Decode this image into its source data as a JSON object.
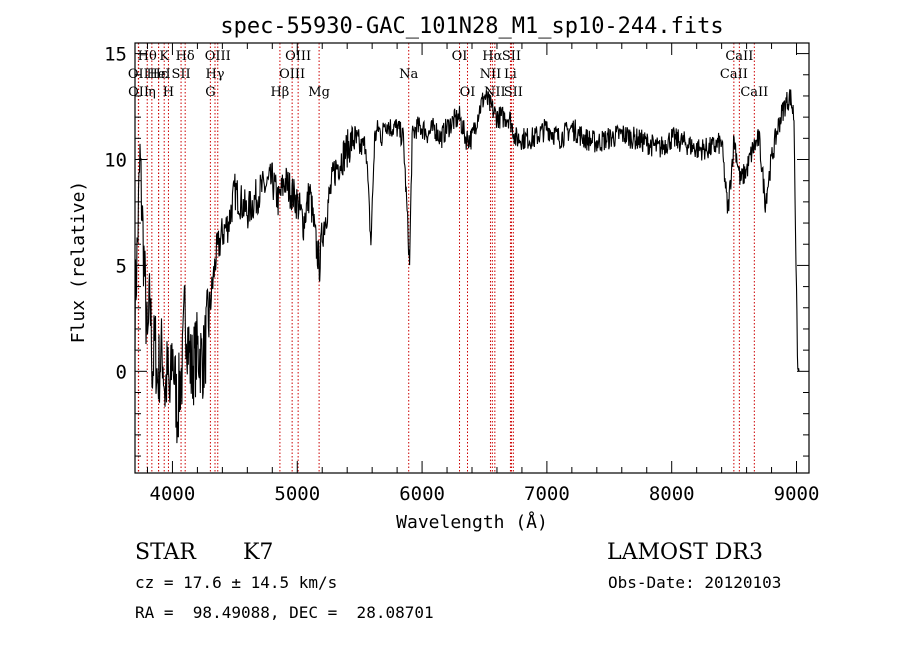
{
  "chart_data": {
    "type": "line",
    "title": "spec-55930-GAC_101N28_M1_sp10-244.fits",
    "xlabel": "Wavelength (Å)",
    "ylabel": "Flux (relative)",
    "xlim": [
      3700,
      9100
    ],
    "ylim": [
      -4.8,
      15.5
    ],
    "xticks": [
      4000,
      5000,
      6000,
      7000,
      8000,
      9000
    ],
    "yticks": [
      0,
      5,
      10,
      15
    ],
    "series": [
      {
        "name": "flux",
        "x": [
          3700,
          3720,
          3740,
          3760,
          3780,
          3800,
          3820,
          3840,
          3860,
          3880,
          3900,
          3920,
          3940,
          3960,
          3980,
          4000,
          4020,
          4040,
          4060,
          4080,
          4100,
          4150,
          4200,
          4250,
          4300,
          4350,
          4400,
          4450,
          4500,
          4600,
          4700,
          4800,
          4850,
          4900,
          4950,
          5000,
          5050,
          5100,
          5150,
          5180,
          5200,
          5250,
          5300,
          5350,
          5400,
          5450,
          5500,
          5550,
          5590,
          5620,
          5650,
          5680,
          5700,
          5750,
          5800,
          5850,
          5880,
          5900,
          5920,
          5950,
          6000,
          6050,
          6100,
          6150,
          6200,
          6250,
          6300,
          6350,
          6400,
          6450,
          6500,
          6550,
          6600,
          6650,
          6700,
          6750,
          6800,
          6900,
          7000,
          7100,
          7200,
          7300,
          7400,
          7500,
          7600,
          7700,
          7800,
          7900,
          8000,
          8100,
          8200,
          8300,
          8400,
          8450,
          8500,
          8550,
          8600,
          8650,
          8700,
          8750,
          8800,
          8850,
          8900,
          8950,
          8980,
          9000,
          9010,
          9020
        ],
        "y": [
          3.0,
          6.0,
          10.0,
          7.0,
          4.0,
          1.0,
          3.5,
          0.0,
          1.5,
          -0.5,
          0.5,
          1.0,
          -1.0,
          0.0,
          -1.5,
          1.0,
          -0.5,
          -2.0,
          -0.5,
          0.0,
          3.0,
          0.0,
          1.0,
          0.5,
          3.0,
          5.5,
          6.5,
          7.0,
          8.5,
          7.5,
          8.5,
          9.0,
          8.0,
          9.0,
          8.5,
          8.0,
          7.0,
          8.5,
          6.0,
          5.0,
          6.5,
          8.0,
          9.5,
          10.0,
          10.5,
          11.0,
          10.5,
          10.8,
          6.0,
          11.0,
          11.5,
          11.0,
          11.8,
          11.5,
          11.5,
          11.0,
          7.5,
          5.0,
          11.0,
          11.5,
          11.5,
          11.2,
          11.5,
          11.0,
          11.5,
          11.8,
          12.0,
          11.0,
          11.0,
          12.2,
          13.0,
          12.5,
          12.0,
          12.0,
          12.0,
          11.0,
          11.0,
          11.0,
          11.5,
          11.0,
          11.5,
          11.0,
          10.8,
          11.0,
          11.2,
          11.0,
          10.8,
          10.5,
          11.0,
          10.8,
          10.5,
          10.5,
          10.8,
          7.5,
          11.0,
          9.0,
          9.5,
          10.5,
          11.0,
          8.0,
          10.0,
          11.5,
          12.5,
          13.0,
          12.0,
          3.5,
          0.0,
          0.0
        ]
      }
    ],
    "lines": [
      {
        "name": "Hθ",
        "x": 3798,
        "row": 0
      },
      {
        "name": "Hε",
        "x": 3889,
        "row": 1
      },
      {
        "name": "K",
        "x": 3934,
        "row": 0
      },
      {
        "name": "H",
        "x": 3968,
        "row": 2
      },
      {
        "name": "Hδ",
        "x": 4102,
        "row": 0
      },
      {
        "name": "SII",
        "x": 4069,
        "row": 1
      },
      {
        "name": "Hγ",
        "x": 4341,
        "row": 1
      },
      {
        "name": "G",
        "x": 4304,
        "row": 2
      },
      {
        "name": "OIII",
        "x": 4363,
        "row": 0
      },
      {
        "name": "OII",
        "x": 3727,
        "row": 1
      },
      {
        "name": "OII",
        "x": 3729,
        "row": 2
      },
      {
        "name": "HeI",
        "x": 3889,
        "row": 1
      },
      {
        "name": "η",
        "x": 3835,
        "row": 2
      },
      {
        "name": "Hβ",
        "x": 4861,
        "row": 2
      },
      {
        "name": "OIII",
        "x": 4959,
        "row": 1
      },
      {
        "name": "OIII",
        "x": 5007,
        "row": 0
      },
      {
        "name": "Mg",
        "x": 5175,
        "row": 2
      },
      {
        "name": "Na",
        "x": 5893,
        "row": 1
      },
      {
        "name": "OI",
        "x": 6300,
        "row": 0
      },
      {
        "name": "OI",
        "x": 6364,
        "row": 2
      },
      {
        "name": "Hα",
        "x": 6563,
        "row": 0
      },
      {
        "name": "NII",
        "x": 6548,
        "row": 1
      },
      {
        "name": "NII",
        "x": 6583,
        "row": 2
      },
      {
        "name": "SII",
        "x": 6716,
        "row": 0
      },
      {
        "name": "SII",
        "x": 6731,
        "row": 2
      },
      {
        "name": "Li",
        "x": 6708,
        "row": 1
      },
      {
        "name": "CaII",
        "x": 8498,
        "row": 1
      },
      {
        "name": "CaII",
        "x": 8542,
        "row": 0
      },
      {
        "name": "CaII",
        "x": 8662,
        "row": 2
      }
    ]
  },
  "info": {
    "class": "STAR",
    "subclass": "K7",
    "survey": "LAMOST DR3",
    "cz": "cz = 17.6 ± 14.5 km/s",
    "obs_date": "Obs-Date: 20120103",
    "coords": "RA =  98.49088, DEC =  28.08701"
  },
  "colors": {
    "axis": "#000000",
    "spectrum": "#000000",
    "line_marker": "#cc0000"
  }
}
